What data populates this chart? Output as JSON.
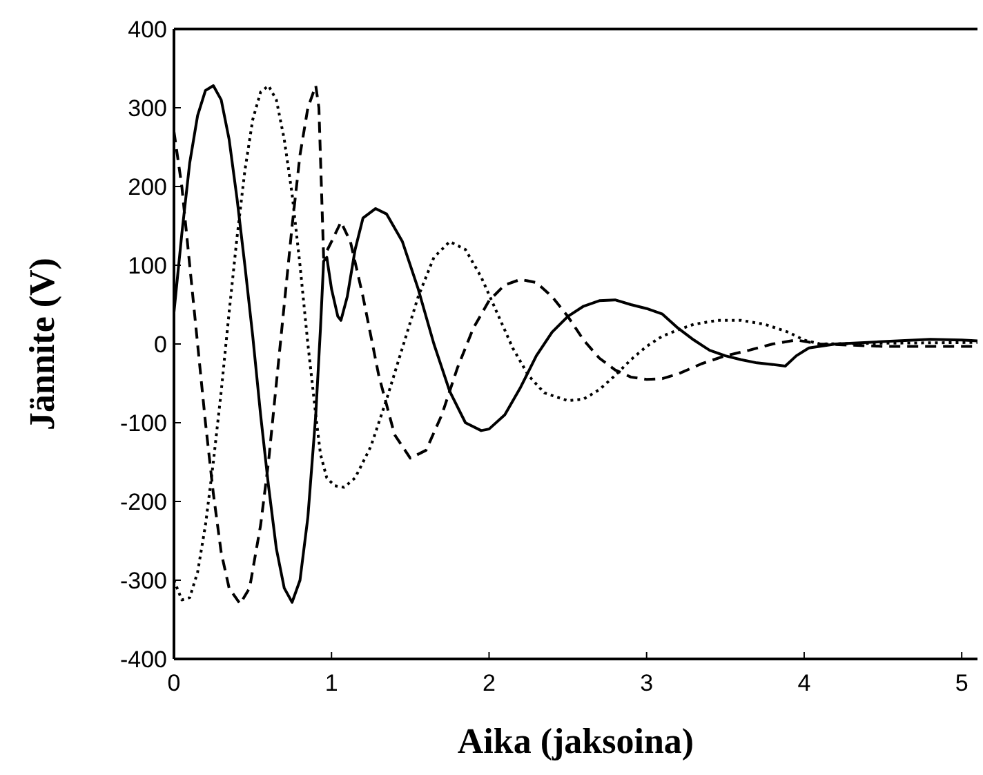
{
  "chart_data": {
    "type": "line",
    "xlabel": "Aika (jaksoina)",
    "ylabel": "Jännite (V)",
    "xlim": [
      0,
      5.1
    ],
    "xticks": [
      0,
      1,
      2,
      3,
      4,
      5
    ],
    "ylim": [
      -400,
      400
    ],
    "yticks": [
      -400,
      -300,
      -200,
      -100,
      0,
      100,
      200,
      300,
      400
    ],
    "grid": false,
    "marker": "none",
    "series": [
      {
        "color": "#000000",
        "line_style": "solid",
        "x": [
          0,
          0.05,
          0.1,
          0.15,
          0.2,
          0.25,
          0.3,
          0.35,
          0.4,
          0.45,
          0.5,
          0.55,
          0.6,
          0.65,
          0.7,
          0.75,
          0.8,
          0.85,
          0.9,
          0.93,
          0.95,
          0.97,
          1.0,
          1.04,
          1.06,
          1.1,
          1.15,
          1.2,
          1.28,
          1.35,
          1.45,
          1.55,
          1.65,
          1.75,
          1.85,
          1.95,
          2.0,
          2.1,
          2.2,
          2.3,
          2.4,
          2.5,
          2.6,
          2.7,
          2.8,
          2.9,
          3.0,
          3.1,
          3.2,
          3.3,
          3.4,
          3.5,
          3.6,
          3.7,
          3.8,
          3.88,
          3.95,
          4.03,
          4.2,
          4.5,
          4.8,
          5.0,
          5.1
        ],
        "values": [
          40,
          140,
          230,
          290,
          322,
          328,
          310,
          260,
          185,
          100,
          10,
          -90,
          -180,
          -260,
          -310,
          -328,
          -300,
          -220,
          -90,
          20,
          105,
          110,
          70,
          35,
          30,
          60,
          120,
          160,
          172,
          165,
          130,
          70,
          0,
          -60,
          -100,
          -110,
          -108,
          -90,
          -55,
          -15,
          15,
          35,
          48,
          55,
          56,
          50,
          45,
          38,
          20,
          5,
          -8,
          -15,
          -20,
          -24,
          -26,
          -28,
          -15,
          -5,
          0,
          3,
          6,
          5,
          4
        ]
      },
      {
        "color": "#000000",
        "line_style": "dotted",
        "x": [
          0,
          0.05,
          0.1,
          0.15,
          0.2,
          0.25,
          0.3,
          0.35,
          0.4,
          0.45,
          0.5,
          0.55,
          0.6,
          0.65,
          0.7,
          0.75,
          0.8,
          0.85,
          0.9,
          0.93,
          0.97,
          1.02,
          1.08,
          1.15,
          1.25,
          1.35,
          1.45,
          1.55,
          1.65,
          1.75,
          1.85,
          1.95,
          2.05,
          2.15,
          2.25,
          2.35,
          2.5,
          2.6,
          2.7,
          2.8,
          2.9,
          3.0,
          3.1,
          3.2,
          3.3,
          3.45,
          3.6,
          3.75,
          3.9,
          4.0,
          4.1,
          4.5,
          5.1
        ],
        "values": [
          -300,
          -325,
          -322,
          -290,
          -230,
          -150,
          -60,
          40,
          135,
          220,
          285,
          320,
          328,
          310,
          260,
          190,
          100,
          0,
          -90,
          -140,
          -170,
          -180,
          -182,
          -170,
          -130,
          -70,
          -5,
          60,
          110,
          130,
          120,
          85,
          40,
          -5,
          -40,
          -62,
          -72,
          -70,
          -58,
          -40,
          -20,
          -3,
          10,
          18,
          25,
          30,
          30,
          25,
          15,
          5,
          0,
          1,
          2
        ]
      },
      {
        "color": "#000000",
        "line_style": "dashed",
        "x": [
          0,
          0.05,
          0.1,
          0.15,
          0.2,
          0.25,
          0.3,
          0.35,
          0.42,
          0.48,
          0.55,
          0.6,
          0.65,
          0.7,
          0.75,
          0.8,
          0.85,
          0.9,
          0.92,
          0.95,
          1.0,
          1.06,
          1.12,
          1.2,
          1.3,
          1.4,
          1.5,
          1.6,
          1.7,
          1.8,
          1.9,
          2.0,
          2.1,
          2.2,
          2.3,
          2.4,
          2.5,
          2.6,
          2.7,
          2.8,
          2.9,
          3.0,
          3.1,
          3.2,
          3.35,
          3.5,
          3.65,
          3.8,
          3.95,
          4.1,
          4.5,
          5.1
        ],
        "values": [
          270,
          200,
          100,
          0,
          -100,
          -190,
          -265,
          -310,
          -330,
          -310,
          -230,
          -150,
          -50,
          50,
          150,
          240,
          300,
          328,
          300,
          110,
          130,
          155,
          130,
          60,
          -40,
          -115,
          -145,
          -135,
          -90,
          -30,
          20,
          55,
          75,
          82,
          78,
          60,
          35,
          5,
          -18,
          -33,
          -42,
          -45,
          -44,
          -38,
          -25,
          -15,
          -8,
          0,
          5,
          0,
          -3,
          -3
        ]
      }
    ]
  }
}
